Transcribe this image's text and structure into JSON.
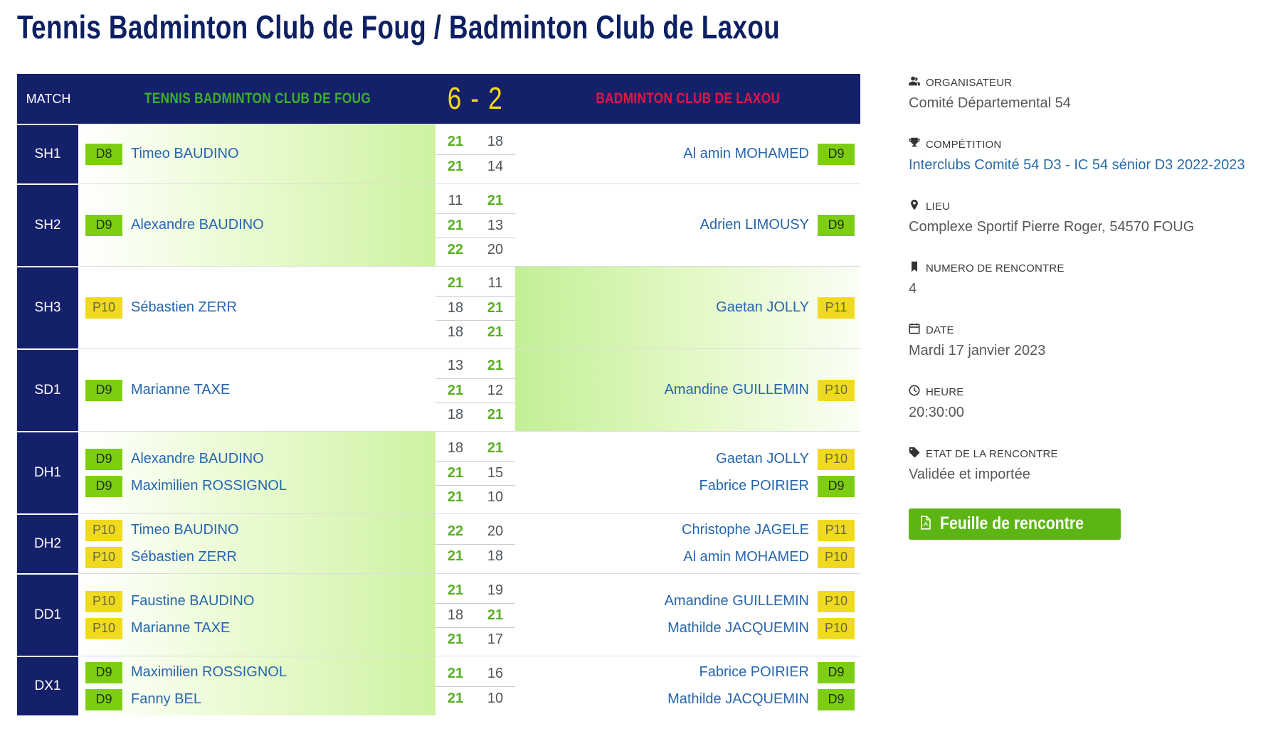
{
  "page_title": "Tennis Badminton Club de Foug / Badminton Club de Laxou",
  "table": {
    "header": {
      "match_label": "MATCH",
      "home_team": "TENNIS BADMINTON CLUB DE FOUG",
      "score": "6 - 2",
      "away_team": "BADMINTON CLUB DE LAXOU"
    },
    "rows": [
      {
        "code": "SH1",
        "winner": "home",
        "home_players": [
          {
            "rank": "D8",
            "name": "Timeo BAUDINO"
          }
        ],
        "away_players": [
          {
            "rank": "D9",
            "name": "Al amin MOHAMED"
          }
        ],
        "sets": [
          {
            "home": 21,
            "away": 18
          },
          {
            "home": 21,
            "away": 14
          }
        ]
      },
      {
        "code": "SH2",
        "winner": "home",
        "home_players": [
          {
            "rank": "D9",
            "name": "Alexandre BAUDINO"
          }
        ],
        "away_players": [
          {
            "rank": "D9",
            "name": "Adrien LIMOUSY"
          }
        ],
        "sets": [
          {
            "home": 11,
            "away": 21
          },
          {
            "home": 21,
            "away": 13
          },
          {
            "home": 22,
            "away": 20
          }
        ]
      },
      {
        "code": "SH3",
        "winner": "away",
        "home_players": [
          {
            "rank": "P10",
            "name": "Sébastien ZERR"
          }
        ],
        "away_players": [
          {
            "rank": "P11",
            "name": "Gaetan JOLLY"
          }
        ],
        "sets": [
          {
            "home": 21,
            "away": 11
          },
          {
            "home": 18,
            "away": 21
          },
          {
            "home": 18,
            "away": 21
          }
        ]
      },
      {
        "code": "SD1",
        "winner": "away",
        "home_players": [
          {
            "rank": "D9",
            "name": "Marianne TAXE"
          }
        ],
        "away_players": [
          {
            "rank": "P10",
            "name": "Amandine GUILLEMIN"
          }
        ],
        "sets": [
          {
            "home": 13,
            "away": 21
          },
          {
            "home": 21,
            "away": 12
          },
          {
            "home": 18,
            "away": 21
          }
        ]
      },
      {
        "code": "DH1",
        "winner": "home",
        "home_players": [
          {
            "rank": "D9",
            "name": "Alexandre BAUDINO"
          },
          {
            "rank": "D9",
            "name": "Maximilien ROSSIGNOL"
          }
        ],
        "away_players": [
          {
            "rank": "P10",
            "name": "Gaetan JOLLY"
          },
          {
            "rank": "D9",
            "name": "Fabrice POIRIER"
          }
        ],
        "sets": [
          {
            "home": 18,
            "away": 21
          },
          {
            "home": 21,
            "away": 15
          },
          {
            "home": 21,
            "away": 10
          }
        ]
      },
      {
        "code": "DH2",
        "winner": "home",
        "home_players": [
          {
            "rank": "P10",
            "name": "Timeo BAUDINO"
          },
          {
            "rank": "P10",
            "name": "Sébastien ZERR"
          }
        ],
        "away_players": [
          {
            "rank": "P11",
            "name": "Christophe JAGELE"
          },
          {
            "rank": "P10",
            "name": "Al amin MOHAMED"
          }
        ],
        "sets": [
          {
            "home": 22,
            "away": 20
          },
          {
            "home": 21,
            "away": 18
          }
        ]
      },
      {
        "code": "DD1",
        "winner": "home",
        "home_players": [
          {
            "rank": "P10",
            "name": "Faustine BAUDINO"
          },
          {
            "rank": "P10",
            "name": "Marianne TAXE"
          }
        ],
        "away_players": [
          {
            "rank": "P10",
            "name": "Amandine GUILLEMIN"
          },
          {
            "rank": "P10",
            "name": "Mathilde JACQUEMIN"
          }
        ],
        "sets": [
          {
            "home": 21,
            "away": 19
          },
          {
            "home": 18,
            "away": 21
          },
          {
            "home": 21,
            "away": 17
          }
        ]
      },
      {
        "code": "DX1",
        "winner": "home",
        "home_players": [
          {
            "rank": "D9",
            "name": "Maximilien ROSSIGNOL"
          },
          {
            "rank": "D9",
            "name": "Fanny BEL"
          }
        ],
        "away_players": [
          {
            "rank": "D9",
            "name": "Fabrice POIRIER"
          },
          {
            "rank": "D9",
            "name": "Mathilde JACQUEMIN"
          }
        ],
        "sets": [
          {
            "home": 21,
            "away": 16
          },
          {
            "home": 21,
            "away": 10
          }
        ]
      }
    ]
  },
  "details": [
    {
      "icon": "users-icon",
      "label": "ORGANISATEUR",
      "value": "Comité Départemental 54",
      "link": false
    },
    {
      "icon": "trophy-icon",
      "label": "COMPÉTITION",
      "value": "Interclubs Comité 54 D3 - IC 54 sénior D3 2022-2023",
      "link": true
    },
    {
      "icon": "map-marker-icon",
      "label": "LIEU",
      "value": "Complexe Sportif Pierre Roger, 54570 FOUG",
      "link": false
    },
    {
      "icon": "bookmark-icon",
      "label": "NUMERO DE RENCONTRE",
      "value": "4",
      "link": false
    },
    {
      "icon": "calendar-icon",
      "label": "DATE",
      "value": "Mardi 17 janvier 2023",
      "link": false
    },
    {
      "icon": "clock-icon",
      "label": "HEURE",
      "value": "20:30:00",
      "link": false
    },
    {
      "icon": "tag-icon",
      "label": "ETAT DE LA RENCONTRE",
      "value": "Validée et importée",
      "link": false
    }
  ],
  "button": {
    "label": "Feuille de rencontre",
    "icon": "pdf-icon"
  },
  "colors": {
    "navy": "#15206B",
    "home_team_green": "#3CB02C",
    "away_team_red": "#E51540",
    "score_yellow": "#F5DB13",
    "badge_green": "#7DCE13",
    "badge_yellow": "#F0DA20",
    "set_win_green": "#58AE24",
    "set_lose_gray": "#4F5458",
    "player_name_blue": "#2566AF",
    "link_blue": "#2A6CA8",
    "button_green": "#5CB512",
    "title_navy": "#0D2063"
  }
}
